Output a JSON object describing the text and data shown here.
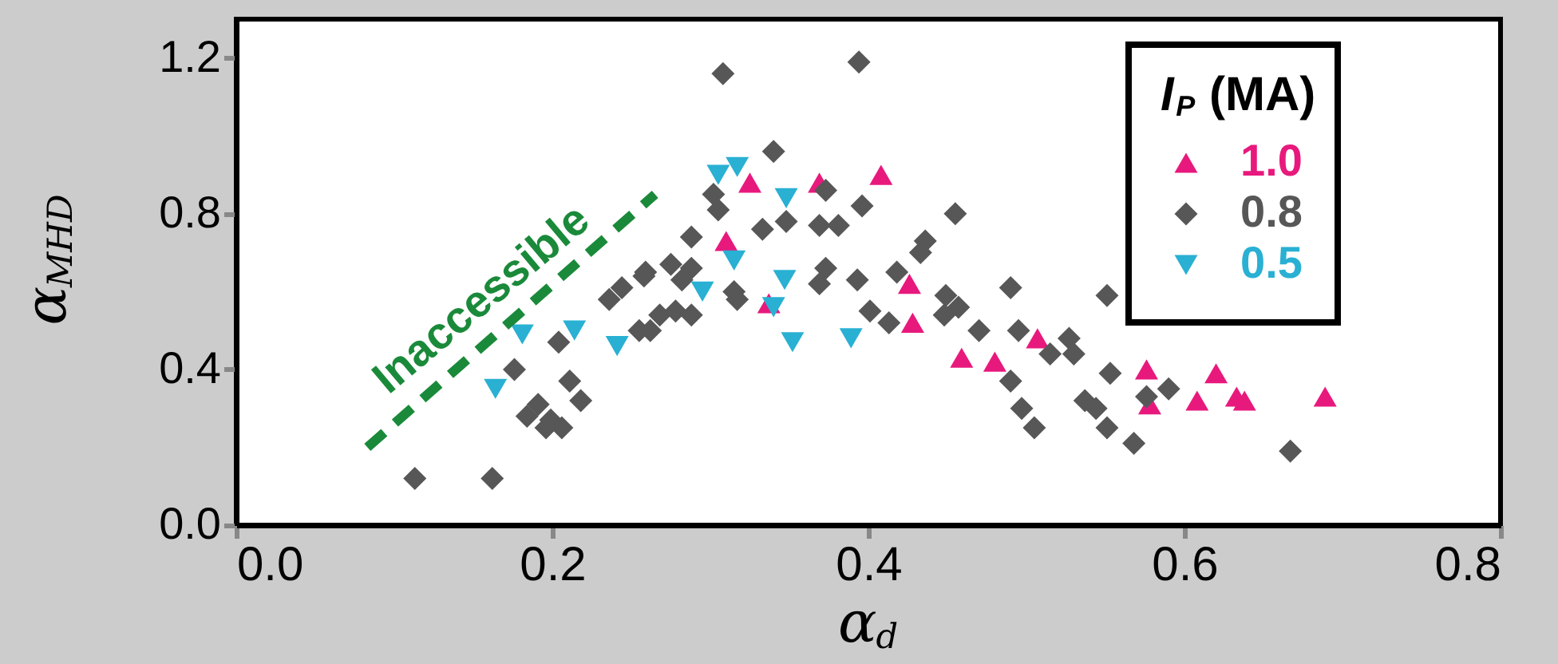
{
  "chart_data": {
    "type": "scatter",
    "xlabel": "α$_{d}$",
    "ylabel": "α$_{MHD}$",
    "legend_title": "I$_{P}$ (MA)",
    "legend": "top right",
    "grid": false,
    "xlim": [
      0,
      0.8
    ],
    "ylim": [
      0,
      1.3
    ],
    "xticks": [
      {
        "value": 0,
        "label": "0.0"
      },
      {
        "value": 0.2,
        "label": "0.2"
      },
      {
        "value": 0.4,
        "label": "0.4"
      },
      {
        "value": 0.6,
        "label": "0.6"
      },
      {
        "value": 0.8,
        "label": "0.8"
      }
    ],
    "yticks": [
      {
        "value": 0,
        "label": "0.0"
      },
      {
        "value": 0.4,
        "label": "0.4"
      },
      {
        "value": 0.8,
        "label": "0.8"
      },
      {
        "value": 1.2,
        "label": "1.2"
      }
    ],
    "series": [
      {
        "name": "1.0",
        "color": "#e8197d",
        "marker": "triangle",
        "x": [
          0.325,
          0.369,
          0.408,
          0.31,
          0.337,
          0.426,
          0.428,
          0.459,
          0.48,
          0.507,
          0.576,
          0.578,
          0.62,
          0.608,
          0.633,
          0.638,
          0.689
        ],
        "values": [
          0.88,
          0.88,
          0.9,
          0.73,
          0.57,
          0.62,
          0.52,
          0.43,
          0.42,
          0.48,
          0.4,
          0.31,
          0.39,
          0.32,
          0.33,
          0.32,
          0.33
        ]
      },
      {
        "name": "0.8",
        "color": "#575757",
        "marker": "diamond",
        "x": [
          0.113,
          0.162,
          0.176,
          0.191,
          0.196,
          0.211,
          0.218,
          0.204,
          0.236,
          0.244,
          0.259,
          0.255,
          0.184,
          0.206,
          0.199,
          0.308,
          0.394,
          0.34,
          0.302,
          0.305,
          0.373,
          0.396,
          0.455,
          0.333,
          0.348,
          0.369,
          0.381,
          0.288,
          0.275,
          0.288,
          0.258,
          0.282,
          0.373,
          0.369,
          0.393,
          0.315,
          0.317,
          0.436,
          0.433,
          0.418,
          0.449,
          0.457,
          0.401,
          0.413,
          0.448,
          0.47,
          0.49,
          0.495,
          0.515,
          0.49,
          0.497,
          0.505,
          0.262,
          0.268,
          0.278,
          0.288,
          0.551,
          0.527,
          0.53,
          0.553,
          0.544,
          0.551,
          0.568,
          0.59,
          0.576,
          0.667,
          0.537
        ],
        "values": [
          0.12,
          0.12,
          0.4,
          0.31,
          0.25,
          0.37,
          0.32,
          0.47,
          0.58,
          0.61,
          0.65,
          0.5,
          0.28,
          0.25,
          0.27,
          1.16,
          1.19,
          0.96,
          0.85,
          0.81,
          0.86,
          0.82,
          0.8,
          0.76,
          0.78,
          0.77,
          0.77,
          0.74,
          0.67,
          0.66,
          0.64,
          0.63,
          0.66,
          0.62,
          0.63,
          0.6,
          0.58,
          0.73,
          0.7,
          0.65,
          0.59,
          0.56,
          0.55,
          0.52,
          0.54,
          0.5,
          0.61,
          0.5,
          0.44,
          0.37,
          0.3,
          0.25,
          0.5,
          0.54,
          0.55,
          0.54,
          0.59,
          0.48,
          0.44,
          0.39,
          0.3,
          0.25,
          0.21,
          0.35,
          0.33,
          0.19,
          0.32
        ]
      },
      {
        "name": "0.5",
        "color": "#29b0d3",
        "marker": "triangle-down",
        "x": [
          0.181,
          0.214,
          0.241,
          0.164,
          0.305,
          0.317,
          0.348,
          0.315,
          0.295,
          0.347,
          0.34,
          0.352,
          0.389
        ],
        "values": [
          0.49,
          0.5,
          0.46,
          0.35,
          0.9,
          0.92,
          0.84,
          0.68,
          0.6,
          0.63,
          0.56,
          0.47,
          0.48
        ]
      },
      {
        "type": "line",
        "color": "#1a8a3a",
        "line_style": "dashed",
        "marker": "none",
        "x": [
          0.083,
          0.265
        ],
        "values": [
          0.2,
          0.85
        ]
      }
    ],
    "annotations": [
      "Inaccessible"
    ]
  }
}
